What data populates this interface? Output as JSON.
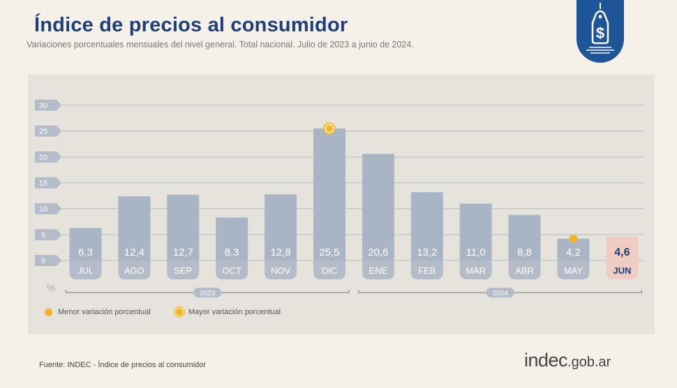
{
  "header": {
    "title": "Índice de precios al consumidor",
    "subtitle": "Variaciones porcentuales mensuales del nivel general. Total nacional. Julio de 2023 a junio de 2024."
  },
  "chart_data": {
    "type": "bar",
    "categories": [
      "JUL",
      "AGO",
      "SEP",
      "OCT",
      "NOV",
      "DIC",
      "ENE",
      "FEB",
      "MAR",
      "ABR",
      "MAY",
      "JUN"
    ],
    "values": [
      6.3,
      12.4,
      12.7,
      8.3,
      12.8,
      25.5,
      20.6,
      13.2,
      11.0,
      8.8,
      4.2,
      4.6
    ],
    "value_labels": [
      "6,3",
      "12,4",
      "12,7",
      "8,3",
      "12,8",
      "25,5",
      "20,6",
      "13,2",
      "11,0",
      "8,8",
      "4,2",
      "4,6"
    ],
    "highlight_index": 11,
    "max_marker_index": 5,
    "min_marker_index": 10,
    "ylim": [
      0,
      30
    ],
    "yticks": [
      0,
      5,
      10,
      15,
      20,
      25,
      30
    ],
    "ylabel": "%",
    "year_groups": [
      {
        "label": "2023",
        "start": 0,
        "end": 5
      },
      {
        "label": "2024",
        "start": 6,
        "end": 11
      }
    ],
    "grid": true,
    "colors": {
      "bar": "#a9b4c5",
      "highlight_bar": "#f1ccc2",
      "highlight_text": "#1e3f7a",
      "marker": "#f0b429",
      "grid": "#b9bcc6",
      "tick_badge": "#b4bcc9"
    }
  },
  "legend": {
    "min_label": "Menor variación porcentual",
    "max_label": "Mayor variación porcentual"
  },
  "footer": {
    "source": "Fuente: INDEC - Índice de precios al consumidor",
    "brand": "indec",
    "brand_domain": ".gob.ar"
  },
  "icons": [
    "price-tag-icon"
  ]
}
